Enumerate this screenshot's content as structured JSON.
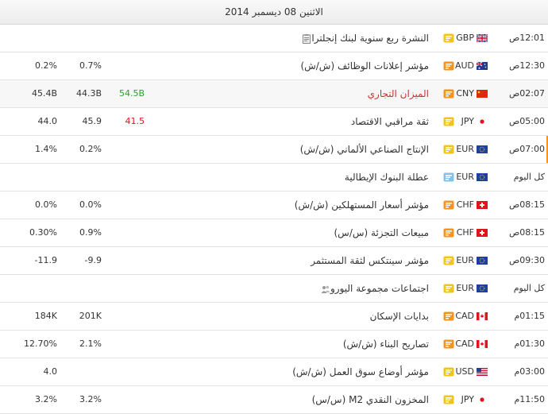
{
  "header": {
    "date": "الاثنين 08 ديسمبر 2014"
  },
  "rows": [
    {
      "time": "12:01ص",
      "currency": "GBP",
      "flag": "gb",
      "impact": "medium",
      "impact_color": "#f0c419",
      "event": "النشرة ربع سنوية لبنك إنجلترا",
      "event_icon": "document-icon",
      "actual": "",
      "forecast": "",
      "previous": ""
    },
    {
      "time": "12:30ص",
      "currency": "AUD",
      "flag": "au",
      "impact": "high",
      "impact_color": "#f7931e",
      "event": "مؤشر إعلانات الوظائف (ش/ش)",
      "actual": "",
      "forecast": "0.7%",
      "previous": "0.2%"
    },
    {
      "time": "02:07ص",
      "currency": "CNY",
      "flag": "cn",
      "impact": "high",
      "impact_color": "#f7931e",
      "event": "الميزان التجاري",
      "event_style": "red",
      "actual": "54.5B",
      "actual_style": "green",
      "forecast": "44.3B",
      "previous": "45.4B"
    },
    {
      "time": "05:00ص",
      "currency": "JPY",
      "flag": "jp",
      "impact": "medium",
      "impact_color": "#f0c419",
      "event": "ثقة مراقبي الاقتصاد",
      "actual": "41.5",
      "actual_style": "red",
      "forecast": "45.9",
      "previous": "44.0"
    },
    {
      "time": "07:00ص",
      "currency": "EUR",
      "flag": "eu",
      "impact": "medium",
      "impact_color": "#f0c419",
      "event": "الإنتاج الصناعي الألماني (ش/ش)",
      "actual": "",
      "forecast": "0.2%",
      "previous": "1.4%"
    },
    {
      "time": "كل اليوم",
      "currency": "EUR",
      "flag": "eu",
      "impact": "low",
      "impact_color": "#7fc4e8",
      "event": "عطلة البنوك الإيطالية",
      "actual": "",
      "forecast": "",
      "previous": ""
    },
    {
      "time": "08:15ص",
      "currency": "CHF",
      "flag": "ch",
      "impact": "high",
      "impact_color": "#f7931e",
      "event": "مؤشر أسعار المستهلكين (ش/ش)",
      "actual": "",
      "forecast": "0.0%",
      "previous": "0.0%"
    },
    {
      "time": "08:15ص",
      "currency": "CHF",
      "flag": "ch",
      "impact": "high",
      "impact_color": "#f7931e",
      "event": "مبيعات التجزئة (س/س)",
      "actual": "",
      "forecast": "0.9%",
      "previous": "0.30%"
    },
    {
      "time": "09:30ص",
      "currency": "EUR",
      "flag": "eu",
      "impact": "medium",
      "impact_color": "#f0c419",
      "event": "مؤشر سينتكس لثقة المستثمر",
      "actual": "",
      "forecast": "-9.9",
      "previous": "-11.9"
    },
    {
      "time": "كل اليوم",
      "currency": "EUR",
      "flag": "eu",
      "impact": "medium",
      "impact_color": "#f0c419",
      "event": "اجتماعات مجموعة اليورو",
      "event_icon": "people-icon",
      "actual": "",
      "forecast": "",
      "previous": ""
    },
    {
      "time": "01:15م",
      "currency": "CAD",
      "flag": "ca",
      "impact": "high",
      "impact_color": "#f7931e",
      "event": "بدايات الإسكان",
      "actual": "",
      "forecast": "201K",
      "previous": "184K"
    },
    {
      "time": "01:30م",
      "currency": "CAD",
      "flag": "ca",
      "impact": "high",
      "impact_color": "#f7931e",
      "event": "تصاريح البناء (ش/ش)",
      "actual": "",
      "forecast": "2.1%",
      "previous": "12.70%"
    },
    {
      "time": "03:00م",
      "currency": "USD",
      "flag": "us",
      "impact": "medium",
      "impact_color": "#f0c419",
      "event": "مؤشر أوضاع سوق العمل (ش/ش)",
      "actual": "",
      "forecast": "",
      "previous": "4.0"
    },
    {
      "time": "11:50م",
      "currency": "JPY",
      "flag": "jp",
      "impact": "medium",
      "impact_color": "#f0c419",
      "event": "المخزون النقدي M2 (س/س)",
      "actual": "",
      "forecast": "3.2%",
      "previous": "3.2%"
    }
  ],
  "highlight_row": 2,
  "active_row": 4
}
